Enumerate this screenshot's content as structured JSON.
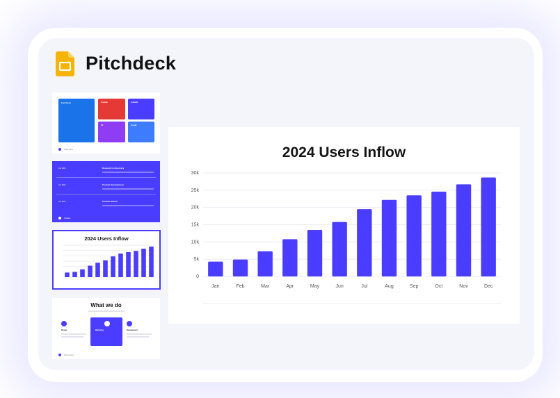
{
  "app": {
    "title": "Pitchdeck",
    "logo": "google-slides-icon"
  },
  "thumbnails": [
    {
      "cards": [
        {
          "title": "Facebook",
          "color": "#1a73e8"
        },
        {
          "title": "Youtube",
          "color": "#e53935"
        },
        {
          "title": "LinkedIn",
          "color": "#4a3dff"
        },
        {
          "title": "Ad",
          "color": "#8e3df5"
        },
        {
          "title": "Google",
          "color": "#3d7bff"
        }
      ],
      "footer": "Team name"
    },
    {
      "items": [
        {
          "date": "Jan 2024",
          "title": "Research & discovery"
        },
        {
          "date": "Jan 2024",
          "title": "Product development"
        },
        {
          "date": "Jan 2024",
          "title": "Product launch"
        }
      ],
      "footer": "Timeline"
    },
    {
      "title": "2024 Users Inflow"
    },
    {
      "title": "What we do",
      "services": [
        "Design",
        "Marketing",
        "Development"
      ],
      "footer": "Our services"
    }
  ],
  "chart_data": {
    "type": "bar",
    "title": "2024 Users Inflow",
    "categories": [
      "Jan",
      "Feb",
      "Mar",
      "Apr",
      "May",
      "Jun",
      "Jul",
      "Aug",
      "Sep",
      "Oct",
      "Nov",
      "Dec"
    ],
    "values": [
      4300,
      4900,
      7300,
      10800,
      13500,
      15800,
      19500,
      22200,
      23500,
      24600,
      26700,
      28700
    ],
    "ylim": [
      0,
      30000
    ],
    "yticks": [
      "0",
      "5k",
      "10k",
      "15k",
      "20k",
      "25k",
      "30k"
    ],
    "bar_color": "#4a3dff",
    "grid": true
  }
}
